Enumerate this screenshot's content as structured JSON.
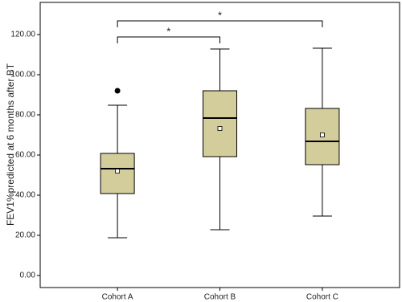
{
  "chart_data": {
    "type": "box",
    "y_label": "FEV1%predicted at 6 months after BT",
    "categories": [
      "Cohort A",
      "Cohort B",
      "Cohort C"
    ],
    "color": "#d3cd9c",
    "boxes": [
      {
        "min": 18.8,
        "q1": 40.8,
        "median": 53.2,
        "q3": 60.8,
        "max": 84.8,
        "mean": 52,
        "outliers": [
          92
        ]
      },
      {
        "min": 22.8,
        "q1": 59.2,
        "median": 78.4,
        "q3": 92,
        "max": 112.8,
        "mean": 73.2,
        "outliers": []
      },
      {
        "min": 29.6,
        "q1": 55.2,
        "median": 66.8,
        "q3": 83.2,
        "max": 113.2,
        "mean": 70,
        "outliers": []
      }
    ],
    "annotations": [
      "*",
      "*"
    ],
    "ylim": [
      -6,
      136
    ],
    "yticks": [
      {
        "value": 0,
        "label": "0.00"
      },
      {
        "value": 20,
        "label": "20.00"
      },
      {
        "value": 40,
        "label": "40.00"
      },
      {
        "value": 60,
        "label": "60.00"
      },
      {
        "value": 80,
        "label": "80.00"
      },
      {
        "value": 100,
        "label": "100.00"
      },
      {
        "value": 120,
        "label": "120.00"
      }
    ]
  }
}
